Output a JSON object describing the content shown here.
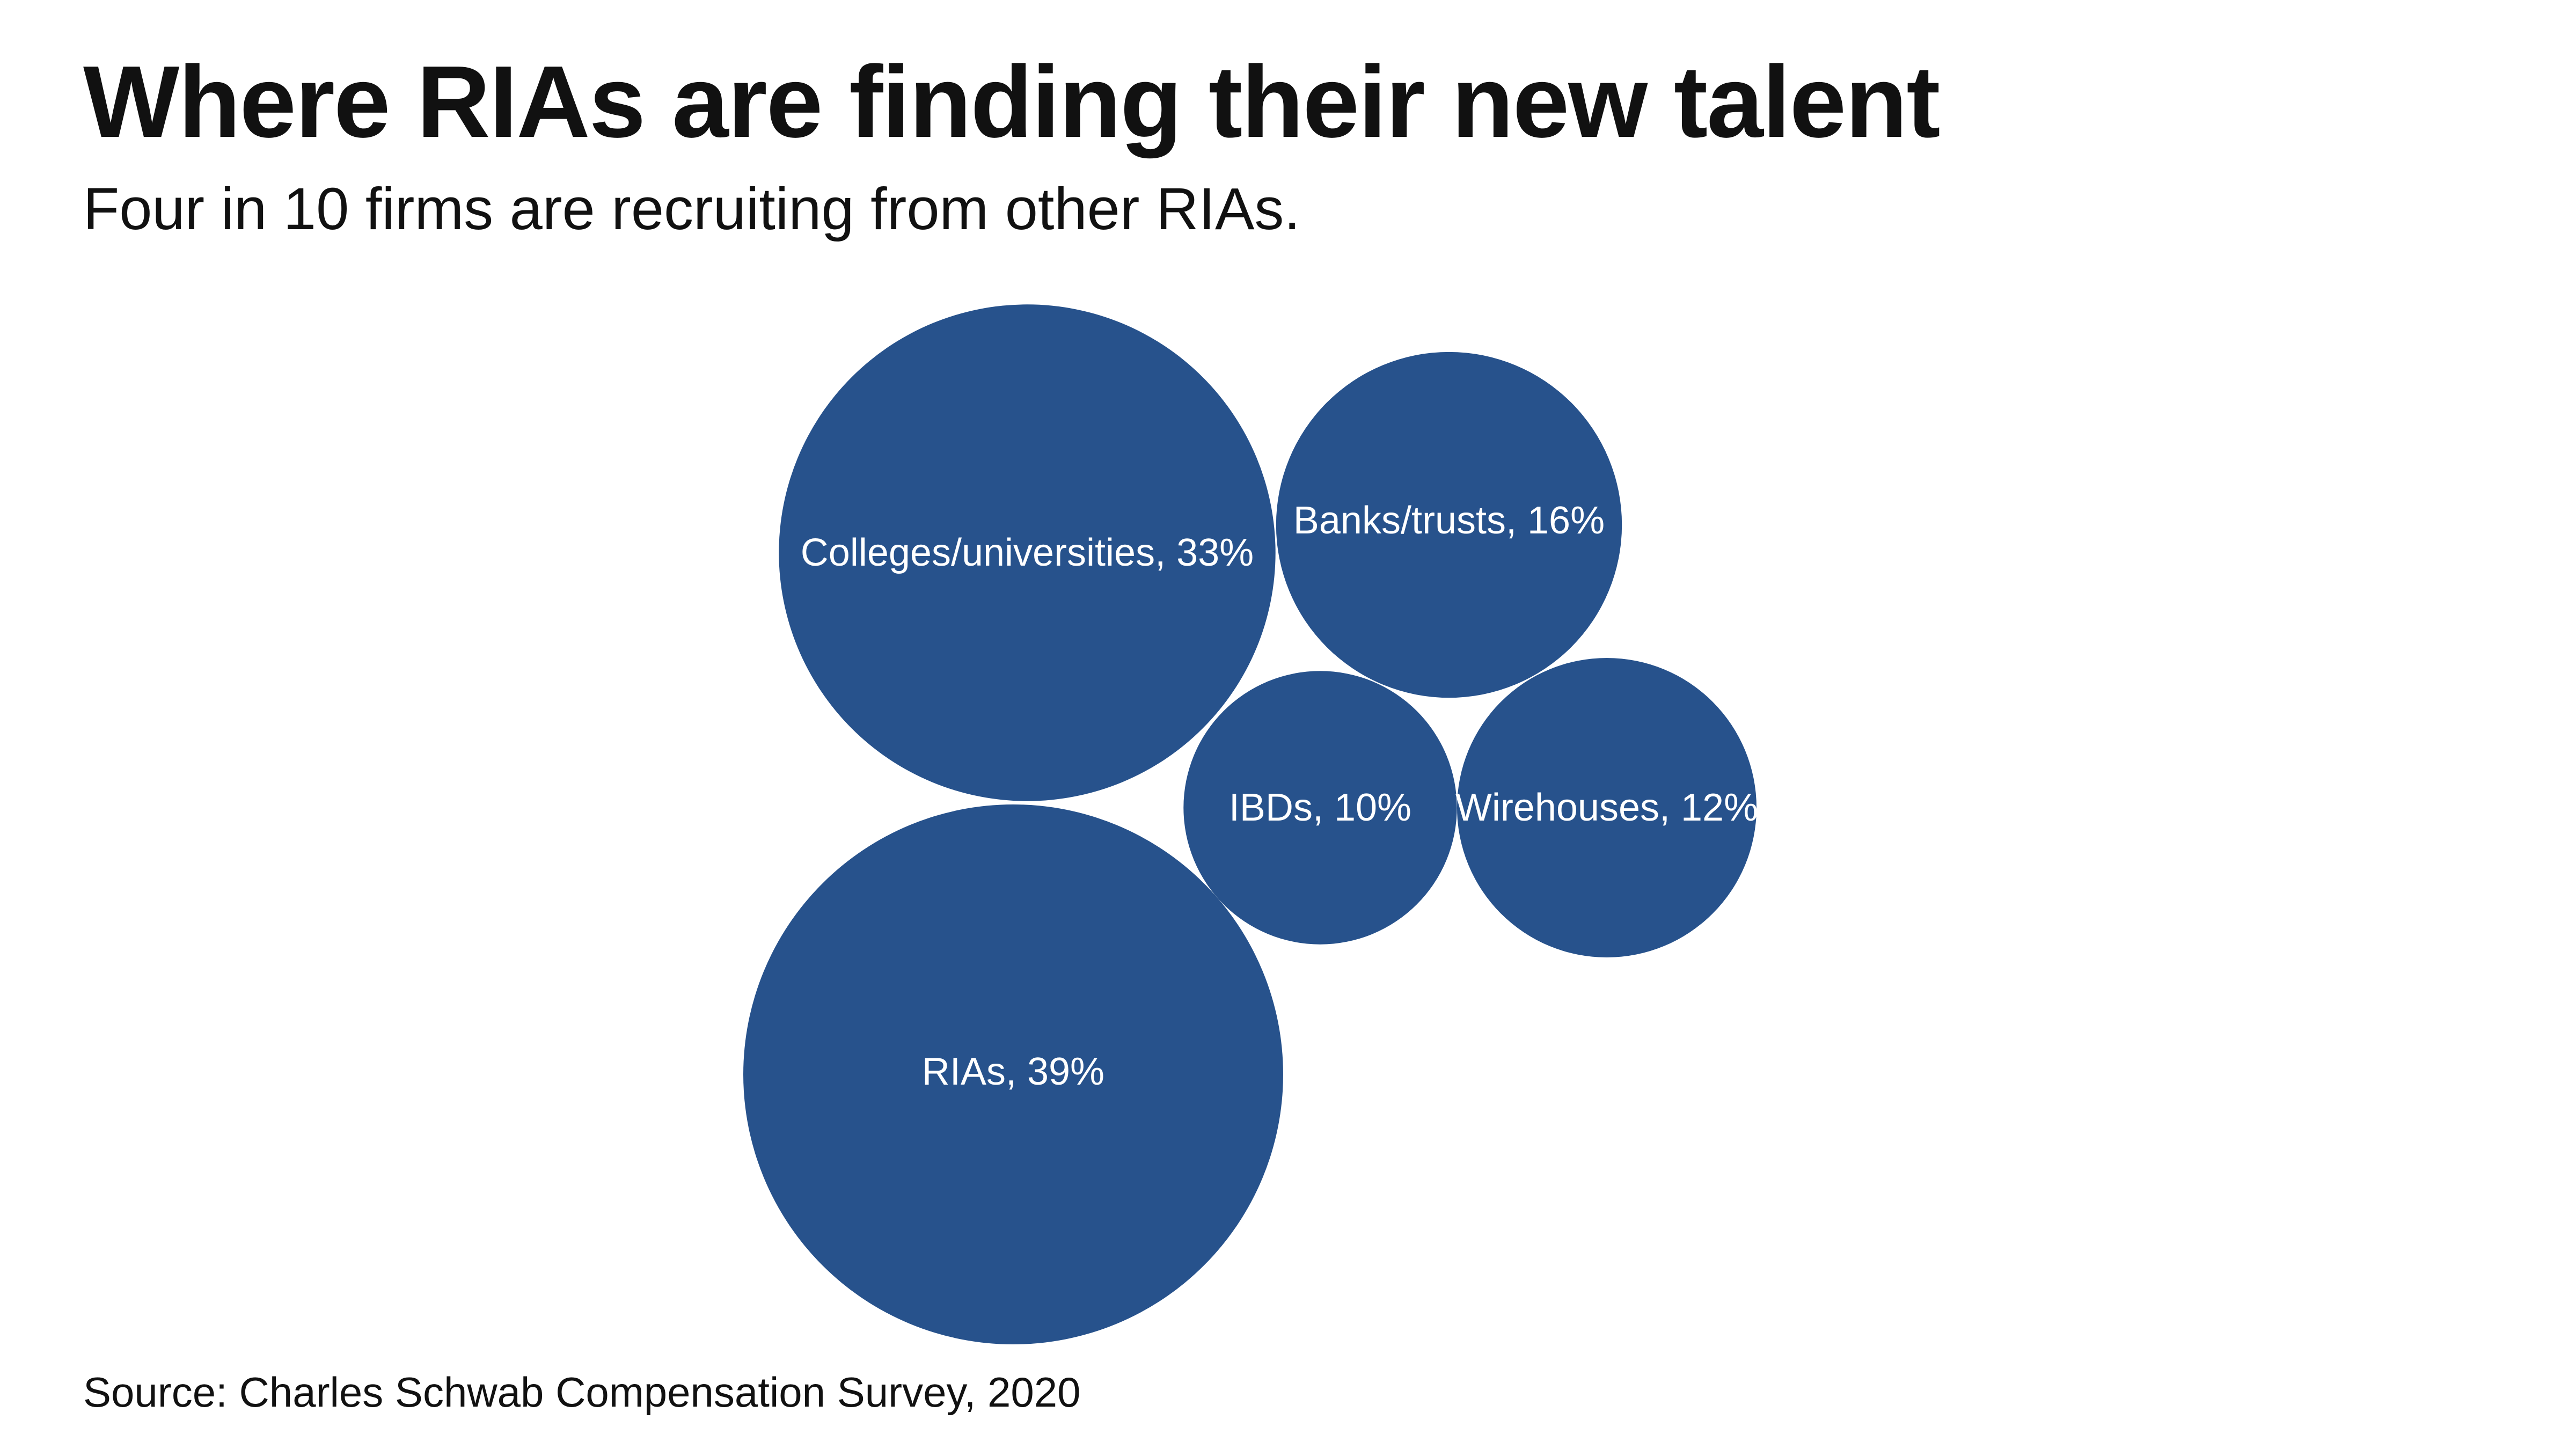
{
  "chart_data": {
    "type": "bubble",
    "title": "Where RIAs are finding their new talent",
    "subtitle": "Four in 10 firms are recruiting from other RIAs.",
    "source": "Source: Charles Schwab Compensation Survey, 2020",
    "color": "#27528C",
    "label_color": "#ffffff",
    "legend": "none",
    "grid": false,
    "series": [
      {
        "label": "Colleges/universities, 33%",
        "category": "Colleges/universities",
        "value": 33
      },
      {
        "label": "Banks/trusts, 16%",
        "category": "Banks/trusts",
        "value": 16
      },
      {
        "label": "IBDs, 10%",
        "category": "IBDs",
        "value": 10
      },
      {
        "label": "Wirehouses, 12%",
        "category": "Wirehouses",
        "value": 12
      },
      {
        "label": "RIAs, 39%",
        "category": "RIAs",
        "value": 39
      }
    ]
  }
}
